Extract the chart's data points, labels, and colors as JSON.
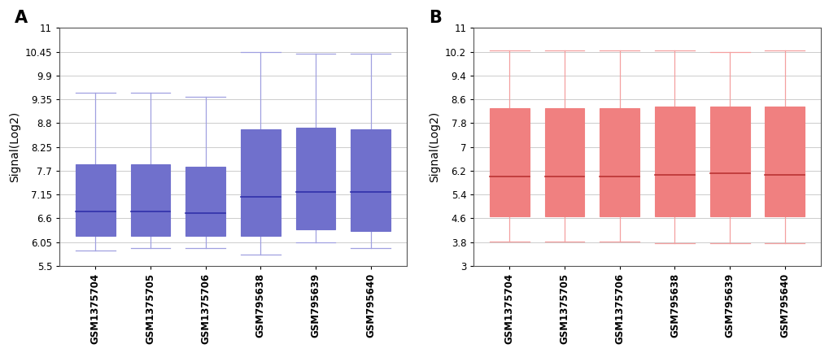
{
  "samples": [
    "GSM1375704",
    "GSM1375705",
    "GSM1375706",
    "GSM795638",
    "GSM795639",
    "GSM795640"
  ],
  "panel_A": {
    "title": "A",
    "ylabel": "Signal(Log2)",
    "ylim": [
      5.5,
      11
    ],
    "yticks": [
      5.5,
      6.05,
      6.6,
      7.15,
      7.7,
      8.25,
      8.8,
      9.35,
      9.9,
      10.45,
      11
    ],
    "ytick_labels": [
      "5.5",
      "6.05",
      "6.6",
      "7.15",
      "7.7",
      "8.25",
      "8.8",
      "9.35",
      "9.9",
      "10.45",
      "11"
    ],
    "box_color": "#7070CC",
    "box_edge_color": "#7070CC",
    "whisker_color": "#A0A0E0",
    "median_color": "#3030AA",
    "boxes": [
      {
        "whislo": 5.85,
        "q1": 6.2,
        "med": 6.75,
        "q3": 7.85,
        "whishi": 9.5
      },
      {
        "whislo": 5.9,
        "q1": 6.2,
        "med": 6.75,
        "q3": 7.85,
        "whishi": 9.5
      },
      {
        "whislo": 5.9,
        "q1": 6.2,
        "med": 6.72,
        "q3": 7.8,
        "whishi": 9.4
      },
      {
        "whislo": 5.75,
        "q1": 6.2,
        "med": 7.1,
        "q3": 8.65,
        "whishi": 10.45
      },
      {
        "whislo": 6.05,
        "q1": 6.35,
        "med": 7.2,
        "q3": 8.7,
        "whishi": 10.4
      },
      {
        "whislo": 5.9,
        "q1": 6.3,
        "med": 7.2,
        "q3": 8.65,
        "whishi": 10.4
      }
    ]
  },
  "panel_B": {
    "title": "B",
    "ylabel": "Signal(Log2)",
    "ylim": [
      3,
      11
    ],
    "yticks": [
      3,
      3.8,
      4.6,
      5.4,
      6.2,
      7.0,
      7.8,
      8.6,
      9.4,
      10.2,
      11
    ],
    "ytick_labels": [
      "3",
      "3.8",
      "4.6",
      "5.4",
      "6.2",
      "7",
      "7.8",
      "8.6",
      "9.4",
      "10.2",
      "11"
    ],
    "box_color": "#F08080",
    "box_edge_color": "#F08080",
    "whisker_color": "#F4A0A0",
    "median_color": "#BB3333",
    "boxes": [
      {
        "whislo": 3.82,
        "q1": 4.65,
        "med": 6.0,
        "q3": 8.3,
        "whishi": 10.25
      },
      {
        "whislo": 3.82,
        "q1": 4.65,
        "med": 6.0,
        "q3": 8.3,
        "whishi": 10.25
      },
      {
        "whislo": 3.82,
        "q1": 4.65,
        "med": 6.0,
        "q3": 8.3,
        "whishi": 10.25
      },
      {
        "whislo": 3.75,
        "q1": 4.65,
        "med": 6.05,
        "q3": 8.35,
        "whishi": 10.25
      },
      {
        "whislo": 3.75,
        "q1": 4.65,
        "med": 6.1,
        "q3": 8.35,
        "whishi": 10.2
      },
      {
        "whislo": 3.75,
        "q1": 4.65,
        "med": 6.05,
        "q3": 8.35,
        "whishi": 10.25
      }
    ]
  },
  "background_color": "#ffffff",
  "grid_color": "#cccccc",
  "label_fontsize": 10,
  "tick_fontsize": 8.5,
  "title_fontsize": 15,
  "box_width": 0.72
}
